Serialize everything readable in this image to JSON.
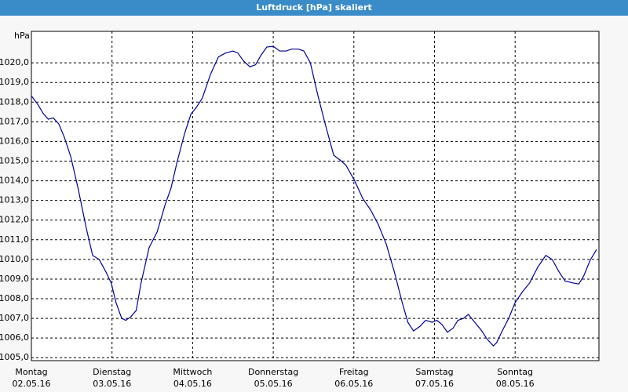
{
  "chart_data": {
    "type": "line",
    "title": "Luftdruck [hPa] skaliert",
    "y_label": "hPa",
    "color": "#00009c",
    "grid": true,
    "xlim": [
      0,
      7.04
    ],
    "ylim": [
      1004.85,
      1021.6
    ],
    "xticks": [
      {
        "value": 0,
        "label": "Montag",
        "sublabel": "02.05.16"
      },
      {
        "value": 1,
        "label": "Dienstag",
        "sublabel": "03.05.16"
      },
      {
        "value": 2,
        "label": "Mittwoch",
        "sublabel": "04.05.16"
      },
      {
        "value": 3,
        "label": "Donnerstag",
        "sublabel": "05.05.16"
      },
      {
        "value": 4,
        "label": "Freitag",
        "sublabel": "06.05.16"
      },
      {
        "value": 5,
        "label": "Samstag",
        "sublabel": "07.05.16"
      },
      {
        "value": 6,
        "label": "Sonntag",
        "sublabel": "08.05.16"
      }
    ],
    "yticks": [
      {
        "value": 1005,
        "label": "1005,0"
      },
      {
        "value": 1006,
        "label": "1006,0"
      },
      {
        "value": 1007,
        "label": "1007,0"
      },
      {
        "value": 1008,
        "label": "1008,0"
      },
      {
        "value": 1009,
        "label": "1009,0"
      },
      {
        "value": 1010,
        "label": "1010,0"
      },
      {
        "value": 1011,
        "label": "1011,0"
      },
      {
        "value": 1012,
        "label": "1012,0"
      },
      {
        "value": 1013,
        "label": "1013,0"
      },
      {
        "value": 1014,
        "label": "1014,0"
      },
      {
        "value": 1015,
        "label": "1015,0"
      },
      {
        "value": 1016,
        "label": "1016,0"
      },
      {
        "value": 1017,
        "label": "1017,0"
      },
      {
        "value": 1018,
        "label": "1018,0"
      },
      {
        "value": 1019,
        "label": "1019,0"
      },
      {
        "value": 1020,
        "label": "1020,0"
      }
    ],
    "x": [
      0,
      0.08,
      0.15,
      0.21,
      0.27,
      0.34,
      0.41,
      0.49,
      0.58,
      0.68,
      0.76,
      0.84,
      0.92,
      0.99,
      1.05,
      1.12,
      1.17,
      1.23,
      1.3,
      1.36,
      1.46,
      1.56,
      1.66,
      1.73,
      1.81,
      1.9,
      1.98,
      2.04,
      2.12,
      2.22,
      2.32,
      2.41,
      2.5,
      2.56,
      2.63,
      2.71,
      2.78,
      2.85,
      2.92,
      3.0,
      3.08,
      3.16,
      3.23,
      3.31,
      3.38,
      3.46,
      3.55,
      3.65,
      3.75,
      3.83,
      3.9,
      4.01,
      4.11,
      4.21,
      4.3,
      4.4,
      4.5,
      4.6,
      4.67,
      4.74,
      4.82,
      4.89,
      4.97,
      5.03,
      5.09,
      5.16,
      5.23,
      5.29,
      5.36,
      5.42,
      5.5,
      5.58,
      5.65,
      5.73,
      5.77,
      5.84,
      5.92,
      6.0,
      6.09,
      6.18,
      6.28,
      6.38,
      6.46,
      6.54,
      6.62,
      6.72,
      6.79,
      6.85,
      6.93,
      7.01
    ],
    "values": [
      1018.32,
      1017.88,
      1017.4,
      1017.13,
      1017.2,
      1016.89,
      1016.2,
      1015.2,
      1013.6,
      1011.6,
      1010.2,
      1010.0,
      1009.4,
      1008.8,
      1007.8,
      1007.0,
      1006.9,
      1007.07,
      1007.4,
      1008.8,
      1010.6,
      1011.4,
      1012.8,
      1013.6,
      1015.0,
      1016.4,
      1017.4,
      1017.7,
      1018.2,
      1019.4,
      1020.3,
      1020.5,
      1020.6,
      1020.5,
      1020.1,
      1019.8,
      1019.9,
      1020.4,
      1020.8,
      1020.84,
      1020.6,
      1020.6,
      1020.7,
      1020.7,
      1020.6,
      1020.0,
      1018.4,
      1016.8,
      1015.3,
      1015.05,
      1014.8,
      1014.0,
      1013.1,
      1012.5,
      1011.8,
      1010.8,
      1009.4,
      1007.8,
      1006.8,
      1006.36,
      1006.6,
      1006.9,
      1006.8,
      1006.9,
      1006.7,
      1006.3,
      1006.5,
      1006.9,
      1007.0,
      1007.2,
      1006.8,
      1006.4,
      1005.96,
      1005.6,
      1005.76,
      1006.36,
      1007.0,
      1007.8,
      1008.35,
      1008.8,
      1009.6,
      1010.2,
      1010.0,
      1009.4,
      1008.9,
      1008.8,
      1008.75,
      1009.15,
      1009.95,
      1010.5
    ]
  }
}
